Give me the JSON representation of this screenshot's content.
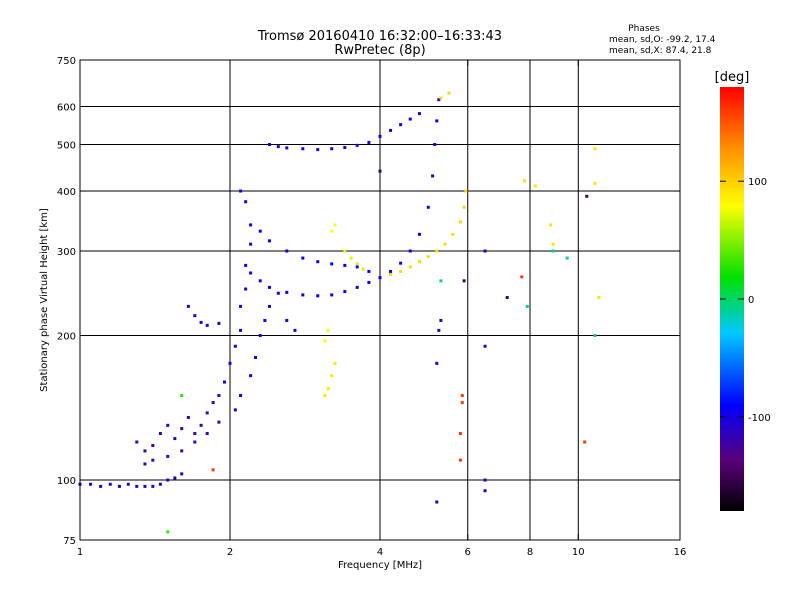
{
  "chart_data": {
    "type": "scatter",
    "title": "Tromsø 20160410 16:32:00–16:33:43",
    "subtitle": "RwPretec (8p)",
    "xlabel": "Frequency [MHz]",
    "ylabel": "Stationary phase Virtual Height [km]",
    "x_scale": "log",
    "y_scale": "log",
    "xlim": [
      1,
      16
    ],
    "ylim": [
      75,
      750
    ],
    "x_ticks": [
      1,
      2,
      4,
      6,
      8,
      10,
      16
    ],
    "x_tick_labels": [
      "1",
      "2",
      "4",
      "6",
      "8",
      "10",
      "16"
    ],
    "y_ticks": [
      75,
      100,
      200,
      300,
      400,
      500,
      600,
      750
    ],
    "y_tick_labels": [
      "75",
      "100",
      "200",
      "300",
      "400",
      "500",
      "600",
      "750"
    ],
    "grid_x": [
      2,
      4,
      6,
      8,
      10
    ],
    "grid_y": [
      100,
      200,
      300,
      400,
      500,
      600
    ],
    "stats": {
      "heading": "Phases",
      "line_o": "mean, sd,O: -99.2, 17.4",
      "line_x": "mean, sd,X: 87.4, 21.8"
    },
    "colorbar": {
      "label": "[deg]",
      "range": [
        -180,
        180
      ],
      "ticks": [
        100,
        0,
        -100
      ],
      "tick_labels": [
        "100",
        "0",
        "-100"
      ],
      "stops": [
        {
          "t": 0.0,
          "color": "#000000"
        },
        {
          "t": 0.12,
          "color": "#5a007a"
        },
        {
          "t": 0.25,
          "color": "#0000ff"
        },
        {
          "t": 0.42,
          "color": "#00c8ff"
        },
        {
          "t": 0.55,
          "color": "#00e000"
        },
        {
          "t": 0.72,
          "color": "#ffff00"
        },
        {
          "t": 0.86,
          "color": "#ff8c00"
        },
        {
          "t": 1.0,
          "color": "#ff0000"
        }
      ]
    },
    "series": [
      {
        "phase": -110,
        "points": [
          [
            1.0,
            98
          ],
          [
            1.05,
            98
          ],
          [
            1.1,
            97
          ],
          [
            1.15,
            98
          ],
          [
            1.2,
            97
          ],
          [
            1.25,
            98
          ],
          [
            1.3,
            97
          ],
          [
            1.35,
            97
          ],
          [
            1.4,
            97
          ],
          [
            1.45,
            98
          ],
          [
            1.5,
            100
          ],
          [
            1.55,
            101
          ],
          [
            1.6,
            103
          ]
        ]
      },
      {
        "phase": -120,
        "points": [
          [
            1.3,
            120
          ],
          [
            1.35,
            115
          ],
          [
            1.4,
            118
          ],
          [
            1.45,
            125
          ],
          [
            1.5,
            130
          ],
          [
            1.55,
            122
          ],
          [
            1.6,
            128
          ],
          [
            1.65,
            135
          ],
          [
            1.7,
            125
          ],
          [
            1.75,
            130
          ],
          [
            1.8,
            138
          ],
          [
            1.85,
            145
          ],
          [
            1.9,
            150
          ],
          [
            1.35,
            108
          ],
          [
            1.4,
            110
          ],
          [
            1.5,
            112
          ],
          [
            1.6,
            115
          ],
          [
            1.7,
            120
          ],
          [
            1.8,
            125
          ],
          [
            1.9,
            132
          ]
        ]
      },
      {
        "phase": -100,
        "points": [
          [
            1.95,
            160
          ],
          [
            2.0,
            175
          ],
          [
            2.05,
            190
          ],
          [
            2.1,
            205
          ],
          [
            2.1,
            230
          ],
          [
            2.15,
            250
          ],
          [
            2.15,
            280
          ],
          [
            2.2,
            310
          ],
          [
            2.2,
            340
          ],
          [
            2.15,
            380
          ],
          [
            2.1,
            400
          ],
          [
            2.05,
            140
          ],
          [
            2.1,
            150
          ],
          [
            2.2,
            165
          ],
          [
            2.25,
            180
          ],
          [
            2.3,
            200
          ],
          [
            2.35,
            215
          ],
          [
            2.4,
            230
          ],
          [
            2.5,
            245
          ],
          [
            2.6,
            215
          ],
          [
            2.7,
            205
          ]
        ]
      },
      {
        "phase": -105,
        "points": [
          [
            1.65,
            230
          ],
          [
            1.7,
            220
          ],
          [
            1.75,
            213
          ],
          [
            1.8,
            210
          ],
          [
            1.9,
            212
          ]
        ]
      },
      {
        "phase": -95,
        "points": [
          [
            2.2,
            270
          ],
          [
            2.3,
            260
          ],
          [
            2.4,
            252
          ],
          [
            2.6,
            246
          ],
          [
            2.8,
            243
          ],
          [
            3.0,
            242
          ],
          [
            3.2,
            243
          ],
          [
            3.4,
            247
          ],
          [
            3.6,
            252
          ],
          [
            3.8,
            258
          ],
          [
            4.0,
            264
          ],
          [
            4.2,
            272
          ],
          [
            4.4,
            283
          ],
          [
            4.6,
            300
          ],
          [
            4.8,
            325
          ],
          [
            5.0,
            370
          ],
          [
            5.1,
            430
          ],
          [
            5.15,
            500
          ],
          [
            5.2,
            560
          ],
          [
            5.25,
            620
          ]
        ]
      },
      {
        "phase": -90,
        "points": [
          [
            2.3,
            330
          ],
          [
            2.4,
            315
          ],
          [
            2.6,
            300
          ],
          [
            2.8,
            290
          ],
          [
            3.0,
            285
          ],
          [
            3.2,
            282
          ],
          [
            3.4,
            280
          ],
          [
            3.6,
            278
          ],
          [
            3.8,
            272
          ]
        ]
      },
      {
        "phase": -100,
        "points": [
          [
            2.4,
            500
          ],
          [
            2.5,
            495
          ],
          [
            2.6,
            492
          ],
          [
            2.8,
            490
          ],
          [
            3.0,
            488
          ],
          [
            3.2,
            490
          ],
          [
            3.4,
            493
          ],
          [
            3.6,
            498
          ],
          [
            3.8,
            505
          ],
          [
            4.0,
            520
          ],
          [
            4.2,
            535
          ],
          [
            4.4,
            550
          ],
          [
            4.6,
            565
          ],
          [
            4.8,
            580
          ]
        ]
      },
      {
        "phase": 95,
        "points": [
          [
            4.2,
            268
          ],
          [
            4.4,
            272
          ],
          [
            4.6,
            278
          ],
          [
            4.8,
            285
          ],
          [
            5.0,
            292
          ],
          [
            5.2,
            300
          ],
          [
            5.4,
            310
          ],
          [
            5.6,
            325
          ],
          [
            5.8,
            345
          ],
          [
            5.9,
            370
          ],
          [
            5.95,
            400
          ],
          [
            5.3,
            625
          ],
          [
            5.5,
            640
          ]
        ]
      },
      {
        "phase": 70,
        "points": [
          [
            3.4,
            300
          ],
          [
            3.5,
            290
          ],
          [
            3.6,
            282
          ],
          [
            3.7,
            275
          ]
        ]
      },
      {
        "phase": 90,
        "points": [
          [
            3.1,
            150
          ],
          [
            3.15,
            155
          ],
          [
            3.2,
            165
          ],
          [
            3.25,
            175
          ]
        ]
      },
      {
        "phase": 80,
        "points": [
          [
            3.1,
            195
          ],
          [
            3.15,
            205
          ],
          [
            3.2,
            330
          ],
          [
            3.25,
            340
          ]
        ]
      },
      {
        "phase": -110,
        "points": [
          [
            5.2,
            90
          ],
          [
            5.2,
            175
          ],
          [
            5.25,
            205
          ],
          [
            5.3,
            215
          ],
          [
            6.5,
            100
          ],
          [
            6.5,
            300
          ],
          [
            6.5,
            95
          ],
          [
            6.5,
            190
          ]
        ]
      },
      {
        "phase": 160,
        "points": [
          [
            5.8,
            110
          ],
          [
            5.8,
            125
          ],
          [
            5.85,
            150
          ],
          [
            5.85,
            145
          ],
          [
            1.85,
            105
          ],
          [
            7.7,
            265
          ],
          [
            10.3,
            120
          ]
        ]
      },
      {
        "phase": 90,
        "points": [
          [
            7.8,
            420
          ],
          [
            8.2,
            410
          ],
          [
            8.8,
            340
          ],
          [
            8.9,
            310
          ],
          [
            10.8,
            490
          ],
          [
            10.8,
            415
          ],
          [
            11.0,
            240
          ]
        ]
      },
      {
        "phase": 30,
        "points": [
          [
            1.5,
            78
          ],
          [
            1.6,
            150
          ]
        ]
      },
      {
        "phase": -10,
        "points": [
          [
            8.9,
            300
          ],
          [
            9.5,
            290
          ],
          [
            7.9,
            230
          ],
          [
            5.3,
            260
          ],
          [
            10.8,
            200
          ]
        ]
      },
      {
        "phase": -150,
        "points": [
          [
            4.0,
            440
          ],
          [
            5.9,
            260
          ],
          [
            10.4,
            390
          ],
          [
            7.2,
            240
          ]
        ]
      }
    ]
  }
}
